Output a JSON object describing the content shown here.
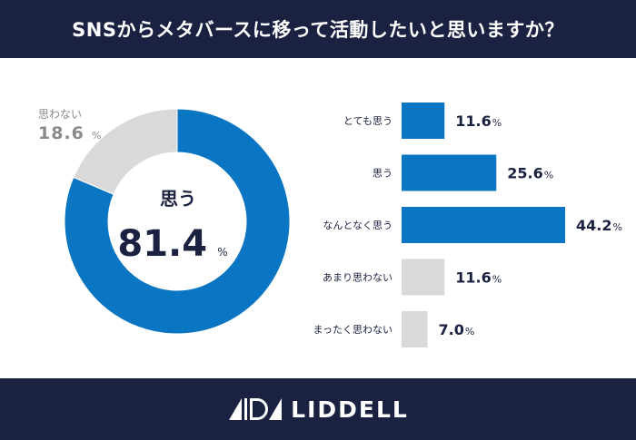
{
  "header": {
    "title": "SNSからメタバースに移って活動したいと思いますか？"
  },
  "brand": {
    "name": "LIDDELL"
  },
  "colors": {
    "header_bg": "#1b2140",
    "blue": "#0a75c2",
    "gray": "#d9d9d9",
    "text_dark": "#1b2140",
    "text_gray": "#8a8a8a",
    "white": "#ffffff"
  },
  "chart_data": [
    {
      "type": "pie",
      "style": "donut",
      "title": "",
      "slices": [
        {
          "label": "思う",
          "value": 81.4,
          "unit": "%",
          "color": "#0a75c2"
        },
        {
          "label": "思わない",
          "value": 18.6,
          "unit": "%",
          "color": "#d9d9d9"
        }
      ]
    },
    {
      "type": "bar",
      "orientation": "horizontal",
      "title": "",
      "categories": [
        "とても思う",
        "思う",
        "なんとなく思う",
        "あまり思わない",
        "まったく思わない"
      ],
      "values": [
        11.6,
        25.6,
        44.2,
        11.6,
        7.0
      ],
      "value_labels": [
        "11.6",
        "25.6",
        "44.2",
        "11.6",
        "7.0"
      ],
      "unit": "%",
      "colors": [
        "#0a75c2",
        "#0a75c2",
        "#0a75c2",
        "#d9d9d9",
        "#d9d9d9"
      ],
      "xlim": [
        0,
        44.2
      ]
    }
  ]
}
